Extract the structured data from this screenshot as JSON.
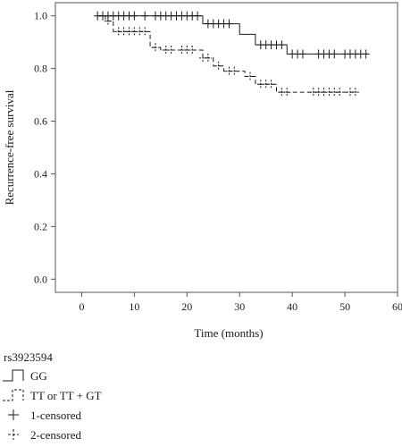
{
  "chart_data": {
    "type": "line",
    "subtype": "kaplan-meier step",
    "xlabel": "Time (months)",
    "ylabel": "Recurrence-free survival",
    "xlim": [
      -5,
      60
    ],
    "ylim": [
      -0.05,
      1.05
    ],
    "xticks": [
      0,
      10,
      20,
      30,
      40,
      50,
      60
    ],
    "yticks": [
      0.0,
      0.2,
      0.4,
      0.6,
      0.8,
      1.0
    ],
    "grid": false,
    "series": [
      {
        "name": "GG",
        "line_style": "solid",
        "steps": [
          [
            0,
            1.0
          ],
          [
            23,
            0.97
          ],
          [
            30,
            0.93
          ],
          [
            33,
            0.89
          ],
          [
            39,
            0.855
          ],
          [
            54.5,
            0.855
          ]
        ],
        "censored_x": [
          3,
          4,
          5,
          6,
          7,
          8,
          9,
          10,
          12,
          14,
          15,
          16,
          17,
          18,
          19,
          20,
          21,
          22,
          24,
          25,
          26,
          27,
          28,
          34,
          35,
          36,
          37,
          38,
          40,
          41,
          42,
          45,
          46,
          47,
          48,
          50,
          51,
          52,
          53,
          54
        ]
      },
      {
        "name": "TT or TT + GT",
        "line_style": "dashed",
        "steps": [
          [
            0,
            1.0
          ],
          [
            4.5,
            0.98
          ],
          [
            6,
            0.94
          ],
          [
            13,
            0.88
          ],
          [
            15,
            0.87
          ],
          [
            23,
            0.84
          ],
          [
            25,
            0.81
          ],
          [
            27,
            0.79
          ],
          [
            31,
            0.77
          ],
          [
            33,
            0.74
          ],
          [
            37,
            0.71
          ],
          [
            52.5,
            0.71
          ]
        ],
        "censored_x": [
          5,
          7,
          8,
          9,
          10,
          11,
          12,
          14,
          16,
          17,
          19,
          20,
          21,
          23,
          24,
          26,
          28,
          29,
          32,
          34,
          35,
          36,
          38,
          39,
          44,
          45,
          46,
          47,
          48,
          49,
          51,
          52
        ]
      }
    ]
  },
  "legend": {
    "title": "rs3923594",
    "items": [
      {
        "label": "GG",
        "icon": "solid-step-icon"
      },
      {
        "label": "TT or TT + GT",
        "icon": "dashed-step-icon"
      },
      {
        "label": "1-censored",
        "icon": "plus-icon"
      },
      {
        "label": "2-censored",
        "icon": "dashed-plus-icon"
      }
    ]
  },
  "colors": {
    "ink": "#1a1a1a",
    "frame": "#555555"
  }
}
